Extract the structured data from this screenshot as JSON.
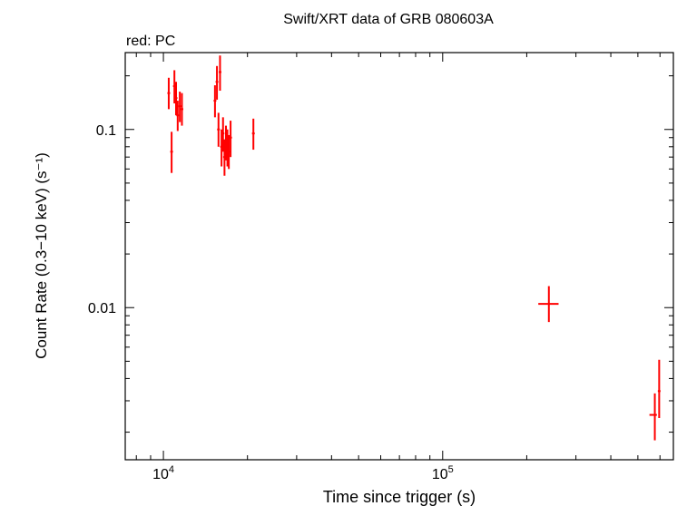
{
  "chart_data": {
    "type": "scatter",
    "title": "Swift/XRT data of GRB 080603A",
    "subtitle": "red: PC",
    "xlabel": "Time since trigger (s)",
    "ylabel": "Count Rate (0.3−10 keV) (s⁻¹)",
    "xscale": "log",
    "yscale": "log",
    "xlim": [
      7300,
      670000
    ],
    "ylim": [
      0.0014,
      0.27
    ],
    "grid": false,
    "legend": "none",
    "series_color": "#ff0000",
    "x_ticks": [
      {
        "value": 10000,
        "base": "10",
        "exp": "4"
      },
      {
        "value": 100000,
        "base": "10",
        "exp": "5"
      }
    ],
    "y_ticks": [
      {
        "value": 0.1,
        "label": "0.1"
      },
      {
        "value": 0.01,
        "label": "0.01"
      }
    ],
    "series": [
      {
        "points": [
          {
            "x": 10450,
            "y": 0.16,
            "xerr": [
              50,
              50
            ],
            "yerr": [
              0.03,
              0.035
            ]
          },
          {
            "x": 10700,
            "y": 0.075,
            "xerr": [
              50,
              50
            ],
            "yerr": [
              0.018,
              0.022
            ]
          },
          {
            "x": 10950,
            "y": 0.175,
            "xerr": [
              50,
              50
            ],
            "yerr": [
              0.035,
              0.04
            ]
          },
          {
            "x": 11100,
            "y": 0.15,
            "xerr": [
              50,
              50
            ],
            "yerr": [
              0.03,
              0.035
            ]
          },
          {
            "x": 11250,
            "y": 0.12,
            "xerr": [
              50,
              50
            ],
            "yerr": [
              0.022,
              0.025
            ]
          },
          {
            "x": 11450,
            "y": 0.135,
            "xerr": [
              50,
              50
            ],
            "yerr": [
              0.025,
              0.028
            ]
          },
          {
            "x": 11650,
            "y": 0.13,
            "xerr": [
              50,
              50
            ],
            "yerr": [
              0.025,
              0.03
            ]
          },
          {
            "x": 15300,
            "y": 0.145,
            "xerr": [
              50,
              50
            ],
            "yerr": [
              0.028,
              0.032
            ]
          },
          {
            "x": 15550,
            "y": 0.185,
            "xerr": [
              50,
              50
            ],
            "yerr": [
              0.038,
              0.042
            ]
          },
          {
            "x": 15750,
            "y": 0.1,
            "xerr": [
              50,
              50
            ],
            "yerr": [
              0.02,
              0.024
            ]
          },
          {
            "x": 15950,
            "y": 0.21,
            "xerr": [
              50,
              50
            ],
            "yerr": [
              0.045,
              0.05
            ]
          },
          {
            "x": 16150,
            "y": 0.08,
            "xerr": [
              50,
              50
            ],
            "yerr": [
              0.018,
              0.02
            ]
          },
          {
            "x": 16350,
            "y": 0.095,
            "xerr": [
              50,
              50
            ],
            "yerr": [
              0.02,
              0.022
            ]
          },
          {
            "x": 16550,
            "y": 0.07,
            "xerr": [
              50,
              50
            ],
            "yerr": [
              0.015,
              0.018
            ]
          },
          {
            "x": 16750,
            "y": 0.085,
            "xerr": [
              50,
              50
            ],
            "yerr": [
              0.018,
              0.02
            ]
          },
          {
            "x": 16950,
            "y": 0.08,
            "xerr": [
              50,
              50
            ],
            "yerr": [
              0.018,
              0.02
            ]
          },
          {
            "x": 17150,
            "y": 0.075,
            "xerr": [
              50,
              50
            ],
            "yerr": [
              0.015,
              0.018
            ]
          },
          {
            "x": 17400,
            "y": 0.09,
            "xerr": [
              50,
              50
            ],
            "yerr": [
              0.02,
              0.022
            ]
          },
          {
            "x": 21000,
            "y": 0.095,
            "xerr": [
              100,
              100
            ],
            "yerr": [
              0.018,
              0.02
            ]
          },
          {
            "x": 240000,
            "y": 0.0105,
            "xerr": [
              20000,
              20000
            ],
            "yerr": [
              0.0022,
              0.0027
            ]
          },
          {
            "x": 575000,
            "y": 0.0025,
            "xerr": [
              25000,
              10000
            ],
            "yerr": [
              0.0007,
              0.0008
            ]
          },
          {
            "x": 596000,
            "y": 0.0034,
            "xerr": [
              5000,
              5000
            ],
            "yerr": [
              0.001,
              0.0017
            ]
          }
        ]
      }
    ]
  }
}
